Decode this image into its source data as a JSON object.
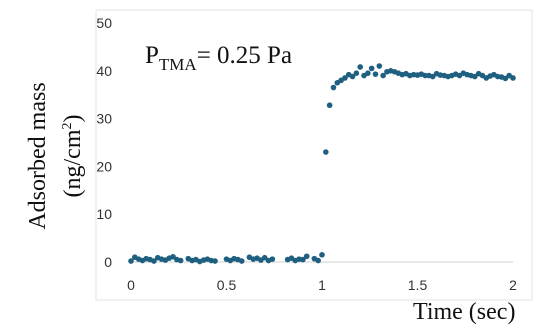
{
  "chart_data": {
    "type": "scatter",
    "xlabel": "Time (sec)",
    "ylabel_line1": "Adsorbed mass",
    "ylabel_line2_prefix": "(ng/cm",
    "ylabel_line2_sup": "2",
    "ylabel_line2_suffix": ")",
    "annotation": {
      "prefix": "P",
      "sub": "TMA",
      "suffix": "= 0.25 Pa"
    },
    "xlim": [
      0,
      2
    ],
    "ylim": [
      0,
      50
    ],
    "x_ticks": [
      "0",
      "0.5",
      "1",
      "1.5",
      "2"
    ],
    "x_tick_values": [
      0,
      0.5,
      1,
      1.5,
      2
    ],
    "y_ticks": [
      "0",
      "10",
      "20",
      "30",
      "40",
      "50"
    ],
    "y_tick_values": [
      0,
      10,
      20,
      30,
      40,
      50
    ],
    "grid": false,
    "marker_color": "#1f5f80",
    "series": [
      {
        "x": [
          0.0,
          0.02,
          0.04,
          0.06,
          0.08,
          0.1,
          0.12,
          0.14,
          0.16,
          0.18,
          0.2,
          0.22,
          0.24,
          0.26,
          0.3,
          0.32,
          0.34,
          0.36,
          0.38,
          0.4,
          0.42,
          0.44,
          0.5,
          0.52,
          0.54,
          0.56,
          0.58,
          0.62,
          0.64,
          0.66,
          0.68,
          0.7,
          0.72,
          0.74,
          0.82,
          0.84,
          0.86,
          0.88,
          0.9,
          0.92,
          0.96,
          0.98,
          1.0,
          1.02,
          1.04,
          1.06,
          1.08,
          1.1,
          1.12,
          1.14,
          1.16,
          1.18,
          1.2,
          1.22,
          1.24,
          1.26,
          1.28,
          1.3,
          1.32,
          1.34,
          1.36,
          1.38,
          1.4,
          1.42,
          1.44,
          1.46,
          1.48,
          1.5,
          1.52,
          1.54,
          1.56,
          1.58,
          1.6,
          1.62,
          1.64,
          1.66,
          1.68,
          1.7,
          1.72,
          1.74,
          1.76,
          1.78,
          1.8,
          1.82,
          1.84,
          1.86,
          1.88,
          1.9,
          1.92,
          1.94,
          1.96,
          1.98,
          2.0
        ],
        "values": [
          0.2,
          1.0,
          0.6,
          0.3,
          0.7,
          0.5,
          0.2,
          0.9,
          0.6,
          0.4,
          0.8,
          1.1,
          0.5,
          0.3,
          0.7,
          0.3,
          0.5,
          0.1,
          0.4,
          0.6,
          0.3,
          0.2,
          0.6,
          0.3,
          0.7,
          0.5,
          0.2,
          1.0,
          0.6,
          0.8,
          0.4,
          0.9,
          0.3,
          0.6,
          0.5,
          0.8,
          0.3,
          0.6,
          0.5,
          1.2,
          0.7,
          0.3,
          1.5,
          23.0,
          32.8,
          36.5,
          37.5,
          38.0,
          38.5,
          39.2,
          38.8,
          39.5,
          40.8,
          39.0,
          39.5,
          40.5,
          39.3,
          41.0,
          39.0,
          39.8,
          40.0,
          39.8,
          39.5,
          39.2,
          39.4,
          39.0,
          39.2,
          39.1,
          39.3,
          39.0,
          39.0,
          38.8,
          39.4,
          39.1,
          39.0,
          38.8,
          39.0,
          39.3,
          39.0,
          39.5,
          39.2,
          39.0,
          38.8,
          39.4,
          39.0,
          38.5,
          38.9,
          39.2,
          38.8,
          38.7,
          38.4,
          39.0,
          38.5
        ]
      }
    ]
  }
}
